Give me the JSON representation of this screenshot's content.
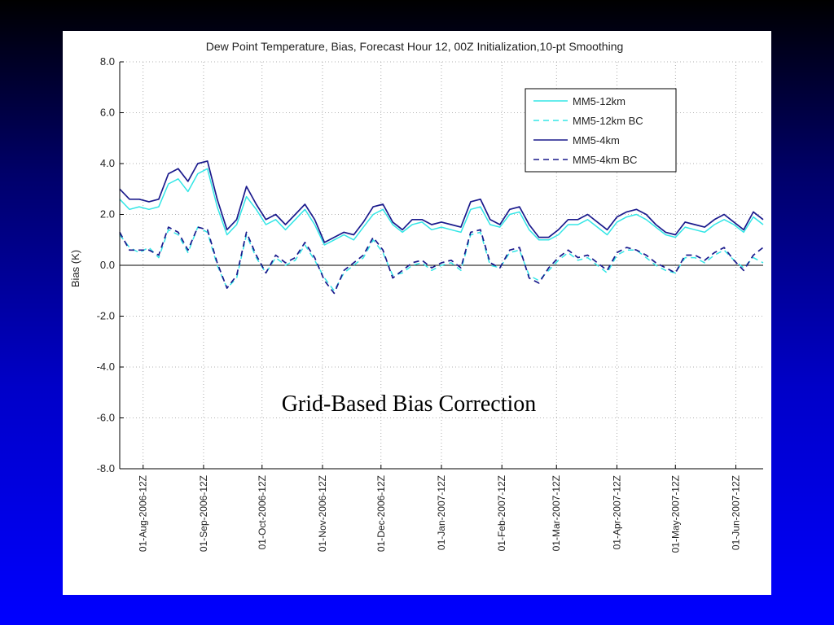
{
  "chart_data": {
    "type": "line",
    "title": "Dew Point Temperature, Bias, Forecast Hour 12, 00Z Initialization,10-pt Smoothing",
    "xlabel": "",
    "ylabel": "Bias (K)",
    "ylim": [
      -8,
      8
    ],
    "yticks": [
      "8.0",
      "6.0",
      "4.0",
      "2.0",
      "0.0",
      "-2.0",
      "-4.0",
      "-6.0",
      "-8.0"
    ],
    "x_tick_labels": [
      "01-Aug-2006-12Z",
      "01-Sep-2006-12Z",
      "01-Oct-2006-12Z",
      "01-Nov-2006-12Z",
      "01-Dec-2006-12Z",
      "01-Jan-2007-12Z",
      "01-Feb-2007-12Z",
      "01-Mar-2007-12Z",
      "01-Apr-2007-12Z",
      "01-May-2007-12Z",
      "01-Jun-2007-12Z"
    ],
    "x_dates": [
      "2006-07-20",
      "2006-07-25",
      "2006-07-30",
      "2006-08-04",
      "2006-08-09",
      "2006-08-14",
      "2006-08-19",
      "2006-08-24",
      "2006-08-29",
      "2006-09-03",
      "2006-09-08",
      "2006-09-13",
      "2006-09-18",
      "2006-09-23",
      "2006-09-28",
      "2006-10-03",
      "2006-10-08",
      "2006-10-13",
      "2006-10-18",
      "2006-10-23",
      "2006-10-28",
      "2006-11-02",
      "2006-11-07",
      "2006-11-12",
      "2006-11-17",
      "2006-11-22",
      "2006-11-27",
      "2006-12-02",
      "2006-12-07",
      "2006-12-12",
      "2006-12-17",
      "2006-12-22",
      "2006-12-27",
      "2007-01-01",
      "2007-01-06",
      "2007-01-11",
      "2007-01-16",
      "2007-01-21",
      "2007-01-26",
      "2007-01-31",
      "2007-02-05",
      "2007-02-10",
      "2007-02-15",
      "2007-02-20",
      "2007-02-25",
      "2007-03-02",
      "2007-03-07",
      "2007-03-12",
      "2007-03-17",
      "2007-03-22",
      "2007-03-27",
      "2007-04-01",
      "2007-04-06",
      "2007-04-11",
      "2007-04-16",
      "2007-04-21",
      "2007-04-26",
      "2007-05-01",
      "2007-05-06",
      "2007-05-11",
      "2007-05-16",
      "2007-05-21",
      "2007-05-26",
      "2007-05-31",
      "2007-06-05",
      "2007-06-10",
      "2007-06-15"
    ],
    "x_start": "2006-07-20",
    "x_end": "2007-06-15",
    "grid": true,
    "legend_position": "top-right",
    "series": [
      {
        "name": "MM5-12km",
        "color": "#33e6e6",
        "dash": "solid",
        "values": [
          2.6,
          2.2,
          2.3,
          2.2,
          2.3,
          3.2,
          3.4,
          2.9,
          3.6,
          3.8,
          2.3,
          1.2,
          1.6,
          2.7,
          2.2,
          1.6,
          1.8,
          1.4,
          1.8,
          2.2,
          1.6,
          0.8,
          1.0,
          1.2,
          1.0,
          1.5,
          2.0,
          2.2,
          1.6,
          1.3,
          1.6,
          1.7,
          1.4,
          1.5,
          1.4,
          1.3,
          2.2,
          2.3,
          1.6,
          1.5,
          2.0,
          2.1,
          1.4,
          1.0,
          1.0,
          1.2,
          1.6,
          1.6,
          1.8,
          1.5,
          1.2,
          1.7,
          1.9,
          2.0,
          1.8,
          1.5,
          1.2,
          1.1,
          1.5,
          1.4,
          1.3,
          1.6,
          1.8,
          1.6,
          1.3,
          1.9,
          1.6
        ]
      },
      {
        "name": "MM5-12km BC",
        "color": "#33e6e6",
        "dash": "dashed",
        "values": [
          1.2,
          0.7,
          0.5,
          0.7,
          0.3,
          1.4,
          1.2,
          0.5,
          1.5,
          1.3,
          0.0,
          -0.9,
          -0.5,
          1.2,
          0.3,
          -0.3,
          0.3,
          0.0,
          0.2,
          0.8,
          0.2,
          -0.5,
          -1.0,
          -0.3,
          0.0,
          0.3,
          1.0,
          0.5,
          -0.4,
          -0.3,
          0.0,
          0.1,
          -0.2,
          0.0,
          0.1,
          -0.2,
          1.2,
          1.3,
          0.0,
          -0.1,
          0.5,
          0.6,
          -0.4,
          -0.6,
          -0.2,
          0.2,
          0.5,
          0.2,
          0.3,
          0.0,
          -0.3,
          0.4,
          0.6,
          0.6,
          0.3,
          0.0,
          -0.2,
          -0.3,
          0.3,
          0.3,
          0.1,
          0.4,
          0.6,
          0.2,
          -0.1,
          0.3,
          0.1
        ]
      },
      {
        "name": "MM5-4km",
        "color": "#1a1a8c",
        "dash": "solid",
        "values": [
          3.0,
          2.6,
          2.6,
          2.5,
          2.6,
          3.6,
          3.8,
          3.3,
          4.0,
          4.1,
          2.6,
          1.4,
          1.8,
          3.1,
          2.4,
          1.8,
          2.0,
          1.6,
          2.0,
          2.4,
          1.8,
          0.9,
          1.1,
          1.3,
          1.2,
          1.7,
          2.3,
          2.4,
          1.7,
          1.4,
          1.8,
          1.8,
          1.6,
          1.7,
          1.6,
          1.5,
          2.5,
          2.6,
          1.8,
          1.6,
          2.2,
          2.3,
          1.6,
          1.1,
          1.1,
          1.4,
          1.8,
          1.8,
          2.0,
          1.7,
          1.4,
          1.9,
          2.1,
          2.2,
          2.0,
          1.6,
          1.3,
          1.2,
          1.7,
          1.6,
          1.5,
          1.8,
          2.0,
          1.7,
          1.4,
          2.1,
          1.8
        ]
      },
      {
        "name": "MM5-4km BC",
        "color": "#1a1a8c",
        "dash": "dashed",
        "values": [
          1.3,
          0.6,
          0.6,
          0.6,
          0.4,
          1.5,
          1.3,
          0.6,
          1.5,
          1.4,
          0.1,
          -0.9,
          -0.4,
          1.3,
          0.4,
          -0.3,
          0.4,
          0.1,
          0.3,
          0.9,
          0.3,
          -0.6,
          -1.1,
          -0.2,
          0.1,
          0.4,
          1.1,
          0.6,
          -0.5,
          -0.2,
          0.1,
          0.2,
          -0.1,
          0.1,
          0.2,
          -0.1,
          1.3,
          1.4,
          0.1,
          -0.1,
          0.6,
          0.7,
          -0.5,
          -0.7,
          -0.1,
          0.3,
          0.6,
          0.3,
          0.4,
          0.1,
          -0.2,
          0.5,
          0.7,
          0.6,
          0.4,
          0.1,
          -0.1,
          -0.3,
          0.4,
          0.4,
          0.2,
          0.5,
          0.7,
          0.2,
          -0.2,
          0.4,
          0.7
        ]
      }
    ]
  },
  "caption": "Grid-Based Bias Correction"
}
